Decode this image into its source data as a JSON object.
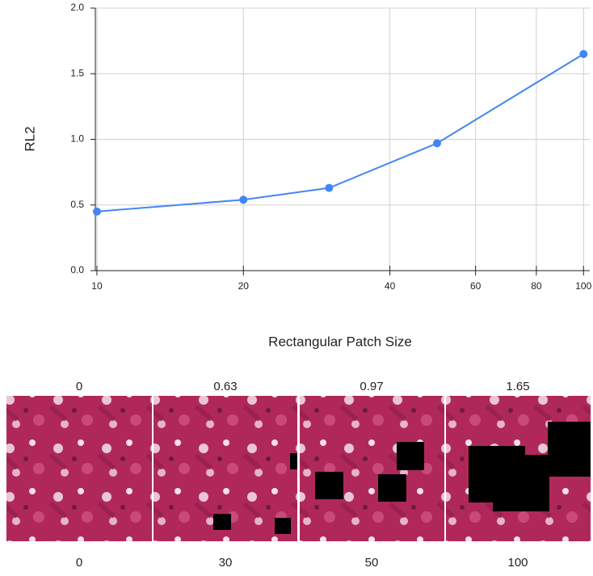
{
  "chart_data": {
    "type": "line",
    "x_label": "Rectangular Patch Size",
    "y_label": "RL2",
    "x": [
      10,
      20,
      30,
      50,
      100
    ],
    "series": [
      {
        "color": "#4285f4",
        "values": [
          0.45,
          0.54,
          0.63,
          0.97,
          1.65
        ]
      }
    ],
    "xlim": [
      9.7,
      103
    ],
    "xticks": [
      10,
      20,
      40,
      60,
      80,
      100
    ],
    "xscale": "log",
    "ylim": [
      0,
      2
    ],
    "yticks": [
      {
        "value": 0,
        "label": "0.0"
      },
      0.5,
      {
        "value": 1,
        "label": "1.0"
      },
      1.5,
      {
        "value": 2,
        "label": "2.0"
      }
    ],
    "grid": true
  },
  "panels": {
    "top_labels": [
      "0",
      "0.63",
      "0.97",
      "1.65"
    ],
    "bottom_labels": [
      "0",
      "30",
      "50",
      "100"
    ]
  }
}
